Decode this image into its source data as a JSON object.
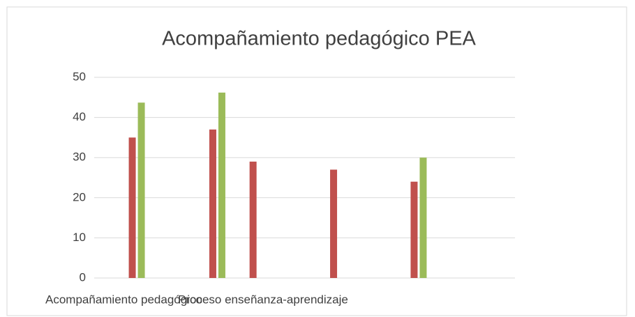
{
  "chart_data": {
    "type": "bar",
    "title": "Acompañamiento pedagógico PEA",
    "categories": [
      null,
      "Acompañamiento pedagógico",
      null,
      "Proceso enseñanza-aprendizaje",
      null,
      null,
      null,
      null,
      null,
      null,
      null
    ],
    "series": [
      {
        "color": "#c0504d",
        "values": [
          null,
          35,
          null,
          37,
          29,
          null,
          27,
          null,
          24,
          null,
          null
        ]
      },
      {
        "color": "#9bbb59",
        "values": [
          null,
          43.7,
          null,
          46.2,
          null,
          null,
          null,
          null,
          30,
          null,
          null
        ]
      }
    ],
    "ylim": [
      0,
      50
    ],
    "yticks": [
      0,
      10,
      20,
      30,
      40,
      50
    ],
    "grid": true
  }
}
